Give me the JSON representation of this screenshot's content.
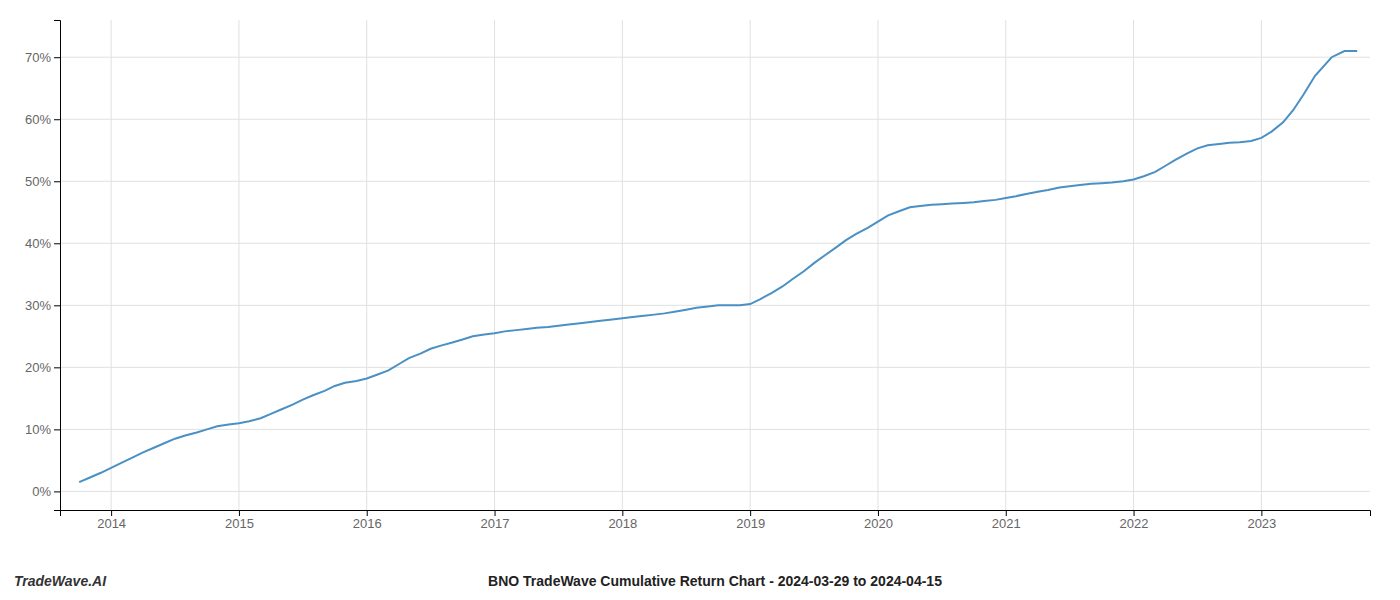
{
  "chart_data": {
    "type": "line",
    "title": "BNO TradeWave Cumulative Return Chart - 2024-03-29 to 2024-04-15",
    "watermark": "TradeWave.AI",
    "color": "#4a90c4",
    "x": [
      2013.75,
      2013.83,
      2013.92,
      2014.0,
      2014.08,
      2014.17,
      2014.25,
      2014.33,
      2014.42,
      2014.5,
      2014.58,
      2014.67,
      2014.75,
      2014.83,
      2014.92,
      2015.0,
      2015.08,
      2015.17,
      2015.25,
      2015.33,
      2015.42,
      2015.5,
      2015.58,
      2015.67,
      2015.75,
      2015.83,
      2015.92,
      2016.0,
      2016.08,
      2016.17,
      2016.25,
      2016.33,
      2016.42,
      2016.5,
      2016.58,
      2016.67,
      2016.75,
      2016.83,
      2016.92,
      2017.0,
      2017.08,
      2017.17,
      2017.25,
      2017.33,
      2017.42,
      2017.5,
      2017.58,
      2017.67,
      2017.75,
      2017.83,
      2017.92,
      2018.0,
      2018.08,
      2018.17,
      2018.25,
      2018.33,
      2018.42,
      2018.5,
      2018.58,
      2018.67,
      2018.75,
      2018.83,
      2018.92,
      2019.0,
      2019.08,
      2019.17,
      2019.25,
      2019.33,
      2019.42,
      2019.5,
      2019.58,
      2019.67,
      2019.75,
      2019.83,
      2019.92,
      2020.0,
      2020.08,
      2020.17,
      2020.25,
      2020.33,
      2020.42,
      2020.5,
      2020.58,
      2020.67,
      2020.75,
      2020.83,
      2020.92,
      2021.0,
      2021.08,
      2021.17,
      2021.25,
      2021.33,
      2021.42,
      2021.5,
      2021.58,
      2021.67,
      2021.75,
      2021.83,
      2021.92,
      2022.0,
      2022.08,
      2022.17,
      2022.25,
      2022.33,
      2022.42,
      2022.5,
      2022.58,
      2022.67,
      2022.75,
      2022.83,
      2022.92,
      2023.0,
      2023.08,
      2023.17,
      2023.25,
      2023.33,
      2023.42,
      2023.55,
      2023.65,
      2023.75
    ],
    "values": [
      1.5,
      2.2,
      3.0,
      3.8,
      4.6,
      5.5,
      6.3,
      7.0,
      7.8,
      8.5,
      9.0,
      9.5,
      10.0,
      10.5,
      10.8,
      11.0,
      11.3,
      11.8,
      12.5,
      13.2,
      14.0,
      14.8,
      15.5,
      16.2,
      17.0,
      17.5,
      17.8,
      18.2,
      18.8,
      19.5,
      20.5,
      21.5,
      22.2,
      23.0,
      23.5,
      24.0,
      24.5,
      25.0,
      25.3,
      25.5,
      25.8,
      26.0,
      26.2,
      26.4,
      26.5,
      26.7,
      26.9,
      27.1,
      27.3,
      27.5,
      27.7,
      27.9,
      28.1,
      28.3,
      28.5,
      28.7,
      29.0,
      29.3,
      29.6,
      29.8,
      30.0,
      30.0,
      30.0,
      30.2,
      31.0,
      32.0,
      33.0,
      34.2,
      35.5,
      36.8,
      38.0,
      39.3,
      40.5,
      41.5,
      42.5,
      43.5,
      44.5,
      45.2,
      45.8,
      46.0,
      46.2,
      46.3,
      46.4,
      46.5,
      46.6,
      46.8,
      47.0,
      47.3,
      47.6,
      48.0,
      48.3,
      48.6,
      49.0,
      49.2,
      49.4,
      49.6,
      49.7,
      49.8,
      50.0,
      50.3,
      50.8,
      51.5,
      52.5,
      53.5,
      54.5,
      55.3,
      55.8,
      56.0,
      56.2,
      56.3,
      56.5,
      57.0,
      58.0,
      59.5,
      61.5,
      64.0,
      67.0,
      70.0,
      71.0,
      71.0
    ],
    "xlim": [
      2013.6,
      2023.85
    ],
    "xticks": [
      2014,
      2015,
      2016,
      2017,
      2018,
      2019,
      2020,
      2021,
      2022,
      2023
    ],
    "ylim": [
      -3,
      76
    ],
    "yticks": [
      {
        "value": 0,
        "label": "0%"
      },
      {
        "value": 10,
        "label": "10%"
      },
      {
        "value": 20,
        "label": "20%"
      },
      {
        "value": 30,
        "label": "30%"
      },
      {
        "value": 40,
        "label": "40%"
      },
      {
        "value": 50,
        "label": "50%"
      },
      {
        "value": 60,
        "label": "60%"
      },
      {
        "value": 70,
        "label": "70%"
      }
    ],
    "grid": true
  }
}
